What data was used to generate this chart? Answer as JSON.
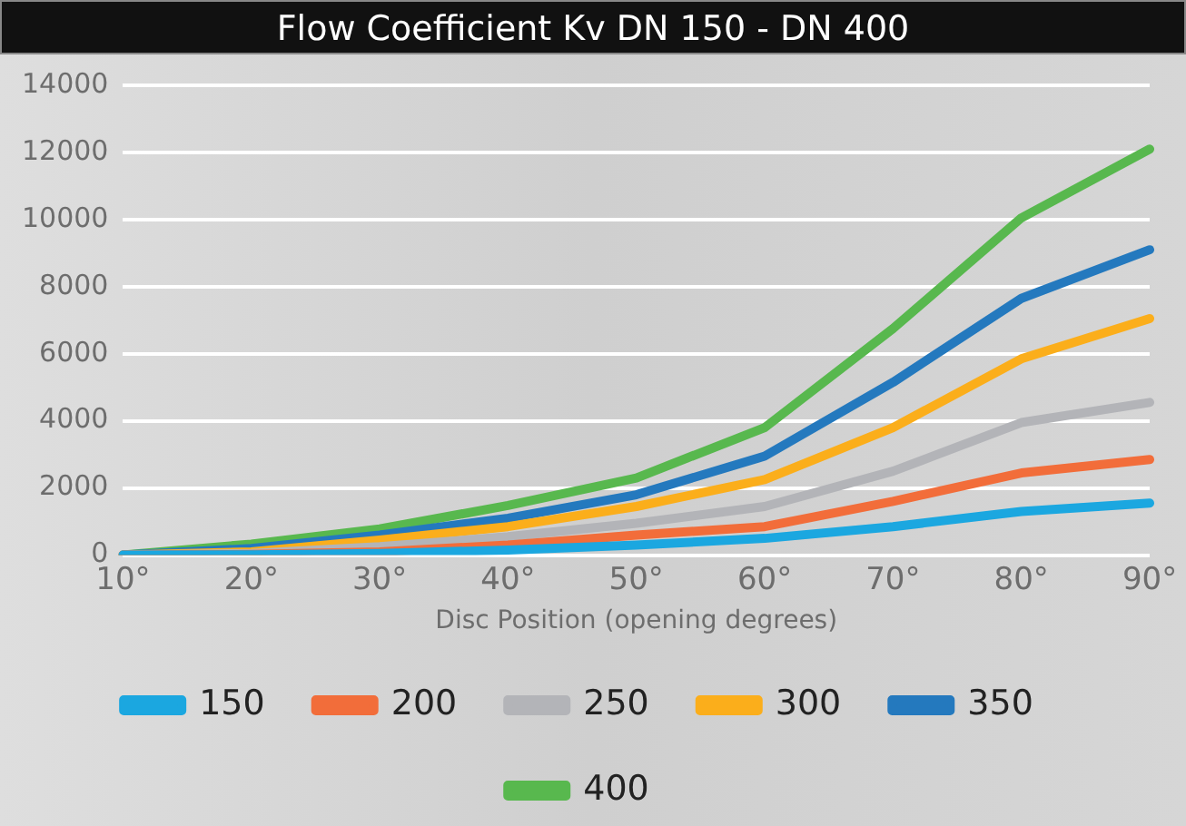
{
  "chart_data": {
    "type": "line",
    "title": "Flow Coefficient Kv DN 150 - DN 400",
    "xlabel": "Disc Position (opening degrees)",
    "categories": [
      "10°",
      "20°",
      "30°",
      "40°",
      "50°",
      "60°",
      "70°",
      "80°",
      "90°"
    ],
    "series": [
      {
        "name": "150",
        "color": "#1ba7e0",
        "values": [
          0,
          10,
          50,
          150,
          300,
          500,
          850,
          1300,
          1550
        ]
      },
      {
        "name": "200",
        "color": "#f26d3a",
        "values": [
          0,
          20,
          100,
          300,
          600,
          850,
          1600,
          2450,
          2850
        ]
      },
      {
        "name": "250",
        "color": "#b3b4b8",
        "values": [
          0,
          50,
          250,
          550,
          950,
          1450,
          2500,
          3950,
          4550
        ]
      },
      {
        "name": "300",
        "color": "#fbae1b",
        "values": [
          0,
          100,
          450,
          850,
          1450,
          2250,
          3800,
          5850,
          7050
        ]
      },
      {
        "name": "350",
        "color": "#2479be",
        "values": [
          0,
          200,
          600,
          1100,
          1800,
          2950,
          5150,
          7650,
          9100
        ]
      },
      {
        "name": "400",
        "color": "#58b84e",
        "values": [
          0,
          330,
          780,
          1480,
          2300,
          3800,
          6750,
          10050,
          12100
        ]
      }
    ],
    "ylim": [
      0,
      14000
    ],
    "yticks": [
      0,
      2000,
      4000,
      6000,
      8000,
      10000,
      12000,
      14000
    ],
    "grid": "y",
    "legend": "bottom",
    "marker": "none",
    "line_style": "solid"
  }
}
